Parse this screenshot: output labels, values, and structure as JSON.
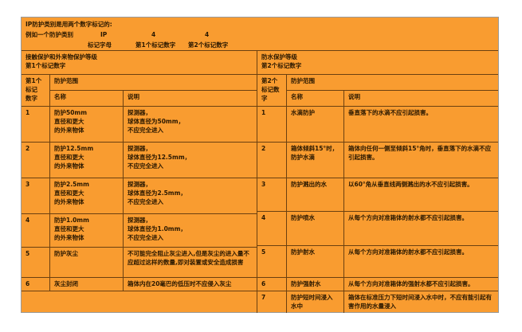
{
  "intro": {
    "line1": "IP防护类别是用两个数字标记的:",
    "example_label": "例如一个防护类别",
    "code_letters": "IP",
    "digit1": "4",
    "digit2": "4",
    "code_letters_caption": "标记字母",
    "digit1_caption": "第1个标记数字",
    "digit2_caption": "第2个标记数字"
  },
  "left": {
    "section_title": "接触保护和外来物保护等级\n第1个标记数字",
    "digit_header": "第1个\n标记\n数字",
    "range_header": "防护范围",
    "name_header": "名称",
    "desc_header": "说明",
    "rows": [
      {
        "digit": "1",
        "name": "防护50mm\n直径和更大\n的外来物体",
        "desc": "探测器，\n球体直径为50mm，\n不应完全进入"
      },
      {
        "digit": "2",
        "name": "防护12.5mm\n直径和更大\n的外来物体",
        "desc": "探测器，\n球体直径为12.5mm，\n不应完全进入"
      },
      {
        "digit": "3",
        "name": "防护2.5mm\n直径和更大\n的外来物体",
        "desc": "探测器，\n球体直径为2.5mm，\n不应完全进入"
      },
      {
        "digit": "4",
        "name": "防护1.0mm\n直径和更大\n的外来物体",
        "desc": "探测器，\n球体直径为1.0mm，\n不应完全进入"
      },
      {
        "digit": "5",
        "name": "防护灰尘",
        "desc": "不可能完全阻止灰尘进入,但是灰尘的进入量不应超过这样的数量,即对装置或安全造成损害"
      },
      {
        "digit": "6",
        "name": "灰尘封闭",
        "desc": "箱体内在20毫巴的低压时不应侵入灰尘"
      }
    ]
  },
  "right": {
    "section_title": "防水保护等级\n第2个标记数字",
    "digit_header": "第2个\n标记数\n字",
    "range_header": "防护范围",
    "name_header": "名称",
    "desc_header": "说明",
    "rows": [
      {
        "digit": "1",
        "name": "水滴防护",
        "desc": "垂直落下的水滴不应引起损害。"
      },
      {
        "digit": "2",
        "name": "箱体倾斜15°时，\n防护水滴",
        "desc": "箱体向任何一侧至倾斜15°角时，垂直落下的水滴不应引起损害。"
      },
      {
        "digit": "3",
        "name": "防护溅出的水",
        "desc": "以60°角从垂直线两侧溅出的水不应引起损害。"
      },
      {
        "digit": "4",
        "name": "防护喷水",
        "desc": "从每个方向对准箱体的射水都不应引起损害。"
      },
      {
        "digit": "5",
        "name": "防护射水",
        "desc": "从每个方向对准箱体的射水都不应引起损害。"
      },
      {
        "digit": "6",
        "name": "防护强射水",
        "desc": "从每个方向对准箱体的强射水都不应引起损害。"
      },
      {
        "digit": "7",
        "name": "防护短时间浸入\n水中",
        "desc": "箱体在标准压力下短时间浸入水中时，不应有能引起有害作用的水量浸入"
      }
    ]
  },
  "colors": {
    "fill": "#f99c30",
    "grid": "#6b4010",
    "text": "#2a1800"
  }
}
